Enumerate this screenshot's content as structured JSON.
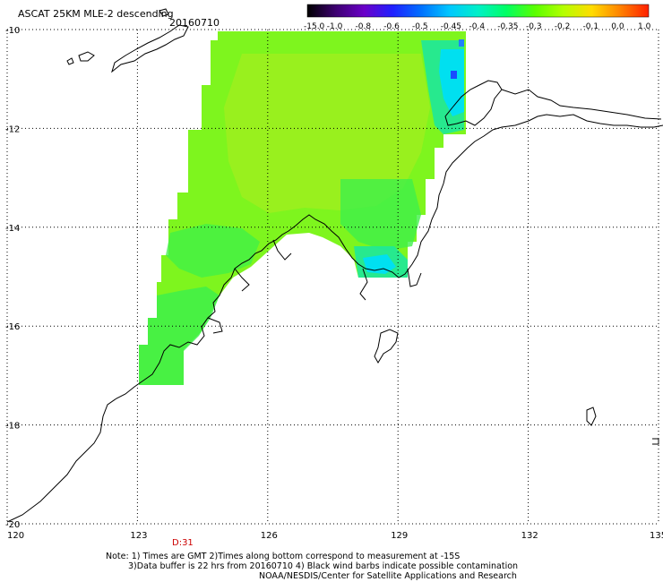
{
  "title": {
    "product": "ASCAT 25KM MLE-2 descending",
    "date": "20160710"
  },
  "colorbar": {
    "labels": [
      "-15.0",
      "-1.0",
      "-0.8",
      "-0.6",
      "-0.5",
      "-0.45",
      "-0.4",
      "-0.35",
      "-0.3",
      "-0.2",
      "-0.1",
      "0.0",
      "1.0"
    ],
    "colors": [
      "#000000",
      "#3d0070",
      "#6a00c8",
      "#2020ff",
      "#0070ff",
      "#00c8ff",
      "#00f0c8",
      "#00ff64",
      "#5aff00",
      "#b4ff00",
      "#ffdc00",
      "#ff8200",
      "#ff2000"
    ]
  },
  "map": {
    "lon_range": [
      120,
      135
    ],
    "lat_range": [
      -20,
      -10
    ],
    "lon_ticks": [
      "120",
      "123",
      "126",
      "129",
      "132",
      "135"
    ],
    "lat_ticks": [
      "-10",
      "-12",
      "-14",
      "-16",
      "-18",
      "-20"
    ],
    "grid": "dotted",
    "field_colors": {
      "main": "#7ef51e",
      "mid": "#9cf01e",
      "deep": "#3ef04a",
      "teal": "#1ee89a",
      "cyan": "#00e0f0",
      "blue": "#1a4bff"
    }
  },
  "time_marker": "D:31",
  "notes": [
    "Note: 1) Times are GMT 2)Times along bottom correspond to measurement at -15S",
    "3)Data buffer is 22 hrs from 20160710 4) Black wind barbs indicate possible contamination",
    "NOAA/NESDIS/Center for Satellite Applications and Research"
  ]
}
